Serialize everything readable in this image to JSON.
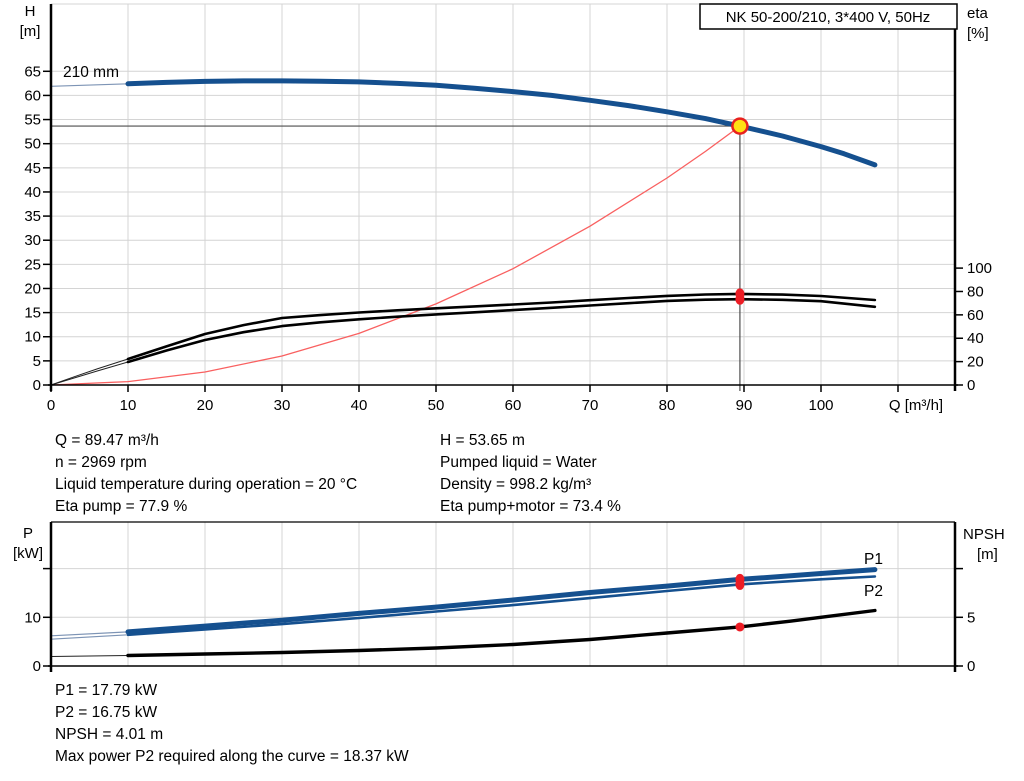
{
  "colors": {
    "curve_blue": "#15508f",
    "thin_blue": "#7d94b5",
    "label_blue": "#2a5a9f",
    "red_dot": "#ed1c24",
    "duty_ring": "#e8211d",
    "duty_fill": "#ffe013",
    "system_red": "#f96060",
    "grid": "#d4d4d4",
    "marker_line": "#4d4d4d",
    "axis": "#000000"
  },
  "info_block_top": {
    "left": [
      "Q = 89.47 m³/h",
      "n = 2969 rpm",
      "Liquid temperature during operation = 20 °C",
      "Eta pump = 77.9 %"
    ],
    "right": [
      "H = 53.65 m",
      "Pumped liquid = Water",
      "Density = 998.2 kg/m³",
      "Eta pump+motor = 73.4 %"
    ]
  },
  "info_block_bottom": {
    "lines": [
      "P1 = 17.79 kW",
      "P2 = 16.75 kW",
      "NPSH = 4.01 m",
      "Max power P2 required along the curve = 18.37 kW"
    ]
  },
  "chart_data": [
    {
      "type": "line",
      "name": "qh-eta-chart",
      "title": "NK 50-200/210, 3*400 V, 50Hz",
      "xlabel": "Q [m³/h]",
      "ylabel_left": [
        "H",
        "[m]"
      ],
      "ylabel_right": [
        "eta",
        "[%]"
      ],
      "curve_label": "210 mm",
      "x_ticks": [
        0,
        10,
        20,
        30,
        40,
        50,
        60,
        70,
        80,
        90,
        100,
        110
      ],
      "x_tick_labels": [
        "0",
        "10",
        "20",
        "30",
        "40",
        "50",
        "60",
        "70",
        "80",
        "90",
        "100",
        ""
      ],
      "y_ticks": [
        0,
        5,
        10,
        15,
        20,
        25,
        30,
        35,
        40,
        45,
        50,
        55,
        60,
        65
      ],
      "y2_ticks": [
        0,
        20,
        40,
        60,
        80,
        100
      ],
      "xlim": [
        0,
        117.4
      ],
      "ylim": [
        0,
        79
      ],
      "y2lim_note": "eta 0-100 maps to lower part of plot",
      "duty_point": {
        "Q": 89.47,
        "H": 53.65
      },
      "eta_markers": [
        {
          "Q": 89.47,
          "eta": 77.9
        },
        {
          "Q": 89.47,
          "eta": 73.4
        }
      ],
      "series": [
        {
          "name": "head-210mm-leadin",
          "yaxis": "H",
          "style": "thin-blue",
          "points": [
            [
              0,
              61.9
            ],
            [
              10,
              62.4
            ]
          ]
        },
        {
          "name": "head-210mm",
          "yaxis": "H",
          "style": "thick-blue",
          "points": [
            [
              10,
              62.4
            ],
            [
              15,
              62.7
            ],
            [
              20,
              62.9
            ],
            [
              25,
              63.0
            ],
            [
              30,
              63.0
            ],
            [
              35,
              62.95
            ],
            [
              40,
              62.8
            ],
            [
              45,
              62.5
            ],
            [
              50,
              62.1
            ],
            [
              55,
              61.5
            ],
            [
              60,
              60.8
            ],
            [
              65,
              60.0
            ],
            [
              70,
              59.0
            ],
            [
              75,
              57.9
            ],
            [
              80,
              56.6
            ],
            [
              85,
              55.2
            ],
            [
              89.47,
              53.65
            ],
            [
              95,
              51.6
            ],
            [
              100,
              49.4
            ],
            [
              103,
              47.9
            ],
            [
              107,
              45.6
            ]
          ]
        },
        {
          "name": "eta-pump-leadin",
          "yaxis": "eta",
          "style": "thin-black",
          "points": [
            [
              0,
              0
            ],
            [
              3,
              7
            ],
            [
              6,
              13.8
            ],
            [
              10,
              22.2
            ]
          ]
        },
        {
          "name": "eta-pump",
          "yaxis": "eta",
          "style": "black",
          "points": [
            [
              10,
              22.2
            ],
            [
              15,
              33
            ],
            [
              20,
              43.6
            ],
            [
              25,
              51.2
            ],
            [
              30,
              57.3
            ],
            [
              35,
              59.8
            ],
            [
              40,
              62
            ],
            [
              45,
              63.9
            ],
            [
              50,
              65.6
            ],
            [
              55,
              67.2
            ],
            [
              60,
              68.9
            ],
            [
              65,
              70.6
            ],
            [
              70,
              72.5
            ],
            [
              75,
              74.4
            ],
            [
              80,
              76.2
            ],
            [
              85,
              77.4
            ],
            [
              89.47,
              77.9
            ],
            [
              95,
              77.3
            ],
            [
              100,
              76.1
            ],
            [
              107,
              72.7
            ]
          ]
        },
        {
          "name": "eta-pump-motor-leadin",
          "yaxis": "eta",
          "style": "thin-black",
          "points": [
            [
              0,
              0
            ],
            [
              3,
              6
            ],
            [
              6,
              12
            ],
            [
              10,
              19.7
            ]
          ]
        },
        {
          "name": "eta-pump-motor",
          "yaxis": "eta",
          "style": "black",
          "points": [
            [
              10,
              19.7
            ],
            [
              15,
              29.5
            ],
            [
              20,
              38.5
            ],
            [
              25,
              45.2
            ],
            [
              30,
              50.4
            ],
            [
              35,
              53.6
            ],
            [
              40,
              56.2
            ],
            [
              45,
              58.4
            ],
            [
              50,
              60.4
            ],
            [
              55,
              62.2
            ],
            [
              60,
              64.1
            ],
            [
              65,
              66
            ],
            [
              70,
              68
            ],
            [
              75,
              70
            ],
            [
              80,
              71.9
            ],
            [
              85,
              73
            ],
            [
              89.47,
              73.4
            ],
            [
              95,
              72.9
            ],
            [
              100,
              71.7
            ],
            [
              107,
              66.9
            ]
          ]
        },
        {
          "name": "system-curve",
          "yaxis": "H",
          "style": "thin-red",
          "points": [
            [
              0,
              0
            ],
            [
              10,
              0.7
            ],
            [
              20,
              2.7
            ],
            [
              30,
              6
            ],
            [
              40,
              10.7
            ],
            [
              50,
              16.8
            ],
            [
              60,
              24.1
            ],
            [
              70,
              32.9
            ],
            [
              80,
              42.9
            ],
            [
              85,
              48.4
            ],
            [
              89.47,
              53.65
            ]
          ]
        }
      ]
    },
    {
      "type": "line",
      "name": "power-npsh-chart",
      "ylabel_left": [
        "P",
        "[kW]"
      ],
      "ylabel_right": [
        "NPSH",
        "[m]"
      ],
      "x_ticks": [
        10,
        20,
        30,
        40,
        50,
        60,
        70,
        80,
        90,
        100,
        110
      ],
      "y_ticks": [
        {
          "v": 0,
          "label": "0"
        },
        {
          "v": 10,
          "label": "10"
        },
        {
          "v": 20,
          "label": ""
        }
      ],
      "y2_ticks": [
        {
          "v": 0,
          "label": "0"
        },
        {
          "v": 5,
          "label": "5"
        },
        {
          "v": 10,
          "label": ""
        }
      ],
      "ylim": [
        0,
        29.5
      ],
      "y2lim": [
        0,
        14.8
      ],
      "series_labels": [
        {
          "text": "P1",
          "x": 864,
          "y": 564
        },
        {
          "text": "P2",
          "x": 864,
          "y": 596
        }
      ],
      "markers": [
        {
          "Q": 89.47,
          "v": 17.79,
          "axis": "P"
        },
        {
          "Q": 89.47,
          "v": 16.75,
          "axis": "P"
        },
        {
          "Q": 89.47,
          "v": 4.01,
          "axis": "NPSH"
        }
      ],
      "series": [
        {
          "name": "p1-leadin",
          "yaxis": "P",
          "style": "thin-blue",
          "points": [
            [
              0,
              6.2
            ],
            [
              10,
              7.0
            ]
          ]
        },
        {
          "name": "p1-curve",
          "yaxis": "P",
          "style": "thick-blue",
          "points": [
            [
              10,
              7.0
            ],
            [
              20,
              8.2
            ],
            [
              30,
              9.4
            ],
            [
              40,
              10.8
            ],
            [
              50,
              12.1
            ],
            [
              60,
              13.55
            ],
            [
              70,
              15.1
            ],
            [
              80,
              16.4
            ],
            [
              89.47,
              17.79
            ],
            [
              95,
              18.4
            ],
            [
              100,
              19.0
            ],
            [
              107,
              19.8
            ]
          ]
        },
        {
          "name": "p2-leadin",
          "yaxis": "P",
          "style": "thin-blue",
          "points": [
            [
              0,
              5.5
            ],
            [
              10,
              6.4
            ]
          ]
        },
        {
          "name": "p2-curve",
          "yaxis": "P",
          "style": "mid-blue",
          "points": [
            [
              10,
              6.4
            ],
            [
              20,
              7.5
            ],
            [
              30,
              8.6
            ],
            [
              40,
              9.85
            ],
            [
              50,
              11.2
            ],
            [
              60,
              12.5
            ],
            [
              70,
              13.95
            ],
            [
              80,
              15.4
            ],
            [
              89.47,
              16.75
            ],
            [
              95,
              17.3
            ],
            [
              100,
              17.8
            ],
            [
              107,
              18.37
            ]
          ]
        },
        {
          "name": "npsh-leadin",
          "yaxis": "NPSH",
          "style": "thin-black",
          "points": [
            [
              0,
              0.98
            ],
            [
              10,
              1.08
            ]
          ]
        },
        {
          "name": "npsh-curve",
          "yaxis": "NPSH",
          "style": "thick-black",
          "points": [
            [
              10,
              1.08
            ],
            [
              20,
              1.23
            ],
            [
              30,
              1.39
            ],
            [
              40,
              1.59
            ],
            [
              50,
              1.85
            ],
            [
              60,
              2.21
            ],
            [
              70,
              2.72
            ],
            [
              80,
              3.39
            ],
            [
              89.47,
              4.01
            ],
            [
              96,
              4.6
            ],
            [
              101,
              5.1
            ],
            [
              107,
              5.7
            ]
          ]
        }
      ]
    }
  ]
}
